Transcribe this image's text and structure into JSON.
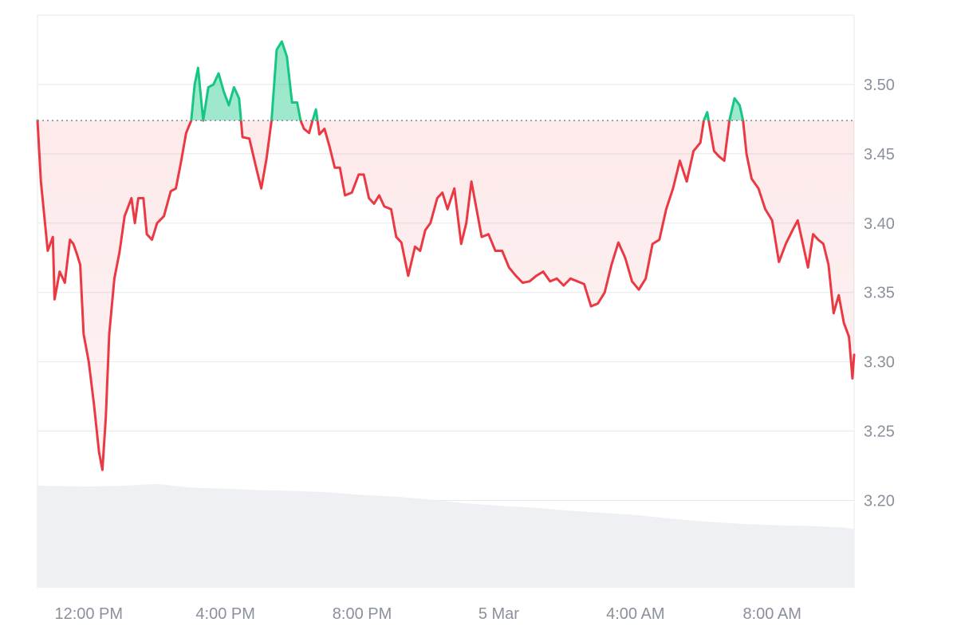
{
  "chart_data": {
    "type": "area",
    "title": "",
    "xlabel": "",
    "ylabel": "",
    "baseline": 3.474,
    "ylim": [
      3.137,
      3.55
    ],
    "y_ticks": [
      3.2,
      3.25,
      3.3,
      3.35,
      3.4,
      3.45,
      3.5
    ],
    "y_tick_labels": [
      "3.20",
      "3.25",
      "3.30",
      "3.35",
      "3.40",
      "3.45",
      "3.50"
    ],
    "x_range": [
      10.5,
      34.4
    ],
    "x_ticks": [
      12,
      16,
      20,
      24,
      28,
      32
    ],
    "x_tick_labels": [
      "12:00 PM",
      "4:00 PM",
      "8:00 PM",
      "5 Mar",
      "4:00 AM",
      "8:00 AM"
    ],
    "grid": true,
    "colors": {
      "above": "#16c784",
      "below": "#ea3943",
      "volume": "#eef0f3",
      "baseline": "#6b7280"
    },
    "series": [
      {
        "points": [
          [
            10.5,
            3.474
          ],
          [
            10.6,
            3.43
          ],
          [
            10.8,
            3.38
          ],
          [
            10.95,
            3.39
          ],
          [
            11.0,
            3.345
          ],
          [
            11.15,
            3.365
          ],
          [
            11.3,
            3.357
          ],
          [
            11.45,
            3.388
          ],
          [
            11.55,
            3.385
          ],
          [
            11.65,
            3.378
          ],
          [
            11.75,
            3.37
          ],
          [
            11.85,
            3.32
          ],
          [
            12.0,
            3.3
          ],
          [
            12.15,
            3.27
          ],
          [
            12.3,
            3.235
          ],
          [
            12.4,
            3.222
          ],
          [
            12.5,
            3.26
          ],
          [
            12.6,
            3.32
          ],
          [
            12.75,
            3.36
          ],
          [
            12.9,
            3.379
          ],
          [
            13.05,
            3.405
          ],
          [
            13.25,
            3.418
          ],
          [
            13.35,
            3.4
          ],
          [
            13.45,
            3.418
          ],
          [
            13.6,
            3.418
          ],
          [
            13.7,
            3.392
          ],
          [
            13.85,
            3.388
          ],
          [
            14.0,
            3.4
          ],
          [
            14.2,
            3.405
          ],
          [
            14.4,
            3.423
          ],
          [
            14.55,
            3.425
          ],
          [
            14.7,
            3.444
          ],
          [
            14.85,
            3.465
          ],
          [
            15.0,
            3.474
          ],
          [
            15.1,
            3.5
          ],
          [
            15.2,
            3.512
          ],
          [
            15.35,
            3.474
          ],
          [
            15.5,
            3.498
          ],
          [
            15.65,
            3.5
          ],
          [
            15.8,
            3.508
          ],
          [
            15.95,
            3.495
          ],
          [
            16.1,
            3.485
          ],
          [
            16.25,
            3.498
          ],
          [
            16.4,
            3.49
          ],
          [
            16.5,
            3.462
          ],
          [
            16.7,
            3.461
          ],
          [
            16.9,
            3.44
          ],
          [
            17.05,
            3.425
          ],
          [
            17.2,
            3.446
          ],
          [
            17.35,
            3.474
          ],
          [
            17.5,
            3.525
          ],
          [
            17.65,
            3.531
          ],
          [
            17.8,
            3.52
          ],
          [
            17.95,
            3.487
          ],
          [
            18.1,
            3.487
          ],
          [
            18.2,
            3.474
          ],
          [
            18.3,
            3.468
          ],
          [
            18.45,
            3.465
          ],
          [
            18.55,
            3.474
          ],
          [
            18.65,
            3.482
          ],
          [
            18.75,
            3.464
          ],
          [
            18.9,
            3.468
          ],
          [
            19.05,
            3.455
          ],
          [
            19.2,
            3.44
          ],
          [
            19.35,
            3.44
          ],
          [
            19.5,
            3.42
          ],
          [
            19.7,
            3.422
          ],
          [
            19.9,
            3.435
          ],
          [
            20.05,
            3.435
          ],
          [
            20.2,
            3.418
          ],
          [
            20.35,
            3.414
          ],
          [
            20.5,
            3.42
          ],
          [
            20.65,
            3.412
          ],
          [
            20.85,
            3.41
          ],
          [
            21.0,
            3.39
          ],
          [
            21.15,
            3.386
          ],
          [
            21.35,
            3.362
          ],
          [
            21.55,
            3.383
          ],
          [
            21.7,
            3.38
          ],
          [
            21.85,
            3.395
          ],
          [
            22.0,
            3.4
          ],
          [
            22.2,
            3.418
          ],
          [
            22.35,
            3.422
          ],
          [
            22.5,
            3.41
          ],
          [
            22.7,
            3.425
          ],
          [
            22.9,
            3.385
          ],
          [
            23.05,
            3.4
          ],
          [
            23.2,
            3.43
          ],
          [
            23.35,
            3.41
          ],
          [
            23.5,
            3.39
          ],
          [
            23.7,
            3.392
          ],
          [
            23.9,
            3.38
          ],
          [
            24.1,
            3.38
          ],
          [
            24.3,
            3.368
          ],
          [
            24.5,
            3.362
          ],
          [
            24.7,
            3.357
          ],
          [
            24.9,
            3.358
          ],
          [
            25.1,
            3.362
          ],
          [
            25.3,
            3.365
          ],
          [
            25.5,
            3.358
          ],
          [
            25.7,
            3.36
          ],
          [
            25.9,
            3.355
          ],
          [
            26.1,
            3.36
          ],
          [
            26.3,
            3.358
          ],
          [
            26.5,
            3.356
          ],
          [
            26.7,
            3.34
          ],
          [
            26.9,
            3.342
          ],
          [
            27.1,
            3.35
          ],
          [
            27.3,
            3.37
          ],
          [
            27.5,
            3.386
          ],
          [
            27.7,
            3.375
          ],
          [
            27.9,
            3.358
          ],
          [
            28.1,
            3.352
          ],
          [
            28.3,
            3.36
          ],
          [
            28.5,
            3.385
          ],
          [
            28.7,
            3.388
          ],
          [
            28.9,
            3.41
          ],
          [
            29.1,
            3.425
          ],
          [
            29.3,
            3.445
          ],
          [
            29.5,
            3.43
          ],
          [
            29.7,
            3.452
          ],
          [
            29.9,
            3.458
          ],
          [
            30.0,
            3.474
          ],
          [
            30.1,
            3.48
          ],
          [
            30.3,
            3.452
          ],
          [
            30.45,
            3.448
          ],
          [
            30.6,
            3.445
          ],
          [
            30.75,
            3.474
          ],
          [
            30.9,
            3.49
          ],
          [
            31.05,
            3.485
          ],
          [
            31.15,
            3.474
          ],
          [
            31.25,
            3.45
          ],
          [
            31.4,
            3.432
          ],
          [
            31.6,
            3.425
          ],
          [
            31.8,
            3.41
          ],
          [
            32.0,
            3.402
          ],
          [
            32.2,
            3.372
          ],
          [
            32.4,
            3.385
          ],
          [
            32.6,
            3.395
          ],
          [
            32.75,
            3.402
          ],
          [
            32.9,
            3.385
          ],
          [
            33.05,
            3.368
          ],
          [
            33.2,
            3.392
          ],
          [
            33.35,
            3.388
          ],
          [
            33.5,
            3.385
          ],
          [
            33.65,
            3.37
          ],
          [
            33.8,
            3.335
          ],
          [
            33.95,
            3.348
          ],
          [
            34.1,
            3.328
          ],
          [
            34.25,
            3.318
          ],
          [
            34.35,
            3.288
          ],
          [
            34.4,
            3.305
          ]
        ]
      }
    ],
    "volume": {
      "ylim": [
        0,
        3
      ],
      "points": [
        [
          10.5,
          2.8
        ],
        [
          12.0,
          2.78
        ],
        [
          13.0,
          2.8
        ],
        [
          14.0,
          2.85
        ],
        [
          15.0,
          2.75
        ],
        [
          16.0,
          2.72
        ],
        [
          17.0,
          2.68
        ],
        [
          18.0,
          2.66
        ],
        [
          19.0,
          2.62
        ],
        [
          20.0,
          2.55
        ],
        [
          21.0,
          2.5
        ],
        [
          22.0,
          2.42
        ],
        [
          23.0,
          2.32
        ],
        [
          24.0,
          2.25
        ],
        [
          25.0,
          2.2
        ],
        [
          26.0,
          2.12
        ],
        [
          27.0,
          2.06
        ],
        [
          28.0,
          2.0
        ],
        [
          29.0,
          1.9
        ],
        [
          30.0,
          1.82
        ],
        [
          31.0,
          1.76
        ],
        [
          32.0,
          1.72
        ],
        [
          33.0,
          1.7
        ],
        [
          34.0,
          1.66
        ],
        [
          34.4,
          1.62
        ]
      ]
    }
  }
}
